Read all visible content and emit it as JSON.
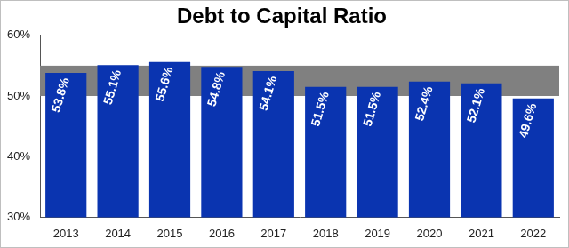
{
  "chart_data": {
    "type": "bar",
    "title": "Debt to Capital Ratio",
    "categories": [
      "2013",
      "2014",
      "2015",
      "2016",
      "2017",
      "2018",
      "2019",
      "2020",
      "2021",
      "2022"
    ],
    "values": [
      53.8,
      55.1,
      55.6,
      54.8,
      54.1,
      51.5,
      51.5,
      52.4,
      52.1,
      49.6
    ],
    "value_labels": [
      "53.8%",
      "55.1%",
      "55.6%",
      "54.8%",
      "54.1%",
      "51.5%",
      "51.5%",
      "52.4%",
      "52.1%",
      "49.6%"
    ],
    "data_labels": true,
    "color": "#0a34b0",
    "ylim": [
      30,
      60
    ],
    "yticks": [
      {
        "value": 30,
        "label": "30%"
      },
      {
        "value": 40,
        "label": "40%"
      },
      {
        "value": 50,
        "label": "50%"
      },
      {
        "value": 60,
        "label": "60%"
      }
    ],
    "grid": false,
    "target_band": [
      50,
      55
    ]
  }
}
